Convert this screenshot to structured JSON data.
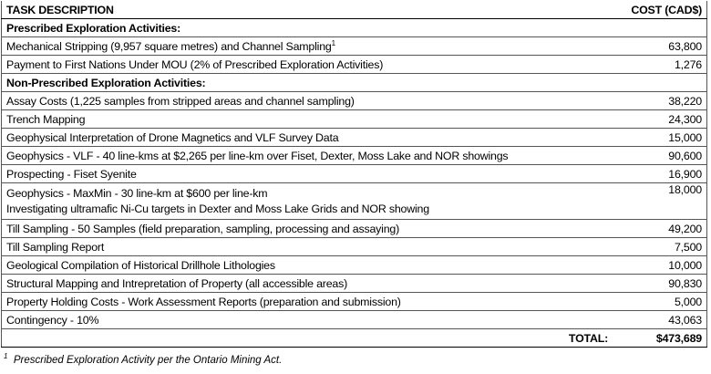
{
  "header": {
    "task": "TASK DESCRIPTION",
    "cost": "COST (CAD$)"
  },
  "rows": [
    {
      "heading": "Prescribed Exploration Activities:"
    },
    {
      "task": "Mechanical Stripping (9,957 square metres) and Channel Sampling",
      "mark": "1",
      "cost": "63,800"
    },
    {
      "task": "Payment to First Nations Under MOU (2% of Prescribed Exploration Activities)",
      "cost": "1,276"
    },
    {
      "heading": "Non-Prescribed Exploration Activities:"
    },
    {
      "task": "Assay Costs (1,225 samples from stripped areas and channel sampling)",
      "cost": "38,220"
    },
    {
      "task": "Trench Mapping",
      "cost": "24,300"
    },
    {
      "task": "Geophysical Interpretation of Drone Magnetics and VLF Survey Data",
      "cost": "15,000"
    },
    {
      "task": "Geophysics - VLF - 40 line-kms at $2,265 per line-km over Fiset, Dexter, Moss Lake and NOR showings",
      "cost": "90,600"
    },
    {
      "task": "Prospecting - Fiset Syenite",
      "cost": "16,900"
    },
    {
      "task": "Geophysics - MaxMin - 30 line-km at $600 per line-km",
      "note": "Investigating ultramafic Ni-Cu targets in Dexter and Moss Lake Grids and NOR showing",
      "cost": "18,000"
    },
    {
      "task": "Till Sampling - 50 Samples (field preparation, sampling, processing and assaying)",
      "cost": "49,200"
    },
    {
      "task": "Till Sampling Report",
      "cost": "7,500"
    },
    {
      "task": "Geological Compilation of Historical Drillhole Lithologies",
      "cost": "10,000"
    },
    {
      "task": "Structural Mapping and Intrepretation of Property (all accessible areas)",
      "cost": "90,830"
    },
    {
      "task": "Property Holding Costs - Work Assessment Reports (preparation and submission)",
      "cost": "5,000"
    },
    {
      "task": "Contingency - 10%",
      "cost": "43,063"
    }
  ],
  "total": {
    "label": "TOTAL:",
    "value": "$473,689"
  },
  "footnote": {
    "mark": "1",
    "text": "Prescribed Exploration Activity per the Ontario Mining Act."
  }
}
